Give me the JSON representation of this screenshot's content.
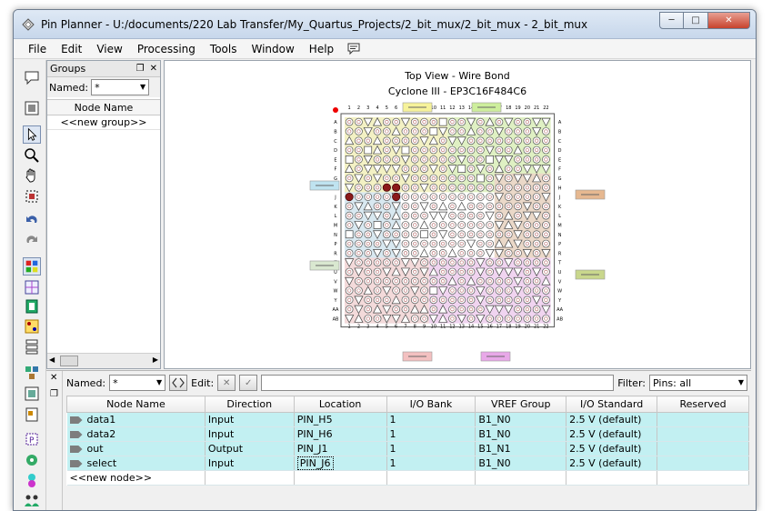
{
  "window": {
    "title": "Pin Planner - U:/documents/220 Lab Transfer/My_Quartus_Projects/2_bit_mux/2_bit_mux - 2_bit_mux",
    "minimize": "─",
    "maximize": "□",
    "close": "✕"
  },
  "menu": [
    "File",
    "Edit",
    "View",
    "Processing",
    "Tools",
    "Window",
    "Help"
  ],
  "groups": {
    "title": "Groups",
    "named_label": "Named:",
    "named_value": "*",
    "column": "Node Name",
    "rows": [
      "<<new group>>"
    ]
  },
  "chip": {
    "title": "Top View - Wire Bond",
    "subtitle": "Cyclone III - EP3C16F484C6",
    "columns": [
      "1",
      "2",
      "3",
      "4",
      "5",
      "6",
      "7",
      "8",
      "9",
      "10",
      "11",
      "12",
      "13",
      "14",
      "15",
      "16",
      "17",
      "18",
      "19",
      "20",
      "21",
      "22"
    ],
    "rows": [
      "A",
      "B",
      "C",
      "D",
      "E",
      "F",
      "G",
      "H",
      "J",
      "K",
      "L",
      "M",
      "N",
      "P",
      "R",
      "T",
      "U",
      "V",
      "W",
      "Y",
      "AA",
      "AB"
    ]
  },
  "bottom": {
    "named_label": "Named:",
    "named_value": "*",
    "edit_label": "Edit:",
    "filter_label": "Filter:",
    "filter_value": "Pins: all",
    "columns": [
      "Node Name",
      "Direction",
      "Location",
      "I/O Bank",
      "VREF Group",
      "I/O Standard",
      "Reserved"
    ],
    "rows": [
      {
        "name": "data1",
        "direction": "Input",
        "location": "PIN_H5",
        "bank": "1",
        "vref": "B1_N0",
        "standard": "2.5 V (default)",
        "reserved": ""
      },
      {
        "name": "data2",
        "direction": "Input",
        "location": "PIN_H6",
        "bank": "1",
        "vref": "B1_N0",
        "standard": "2.5 V (default)",
        "reserved": ""
      },
      {
        "name": "out",
        "direction": "Output",
        "location": "PIN_J1",
        "bank": "1",
        "vref": "B1_N1",
        "standard": "2.5 V (default)",
        "reserved": ""
      },
      {
        "name": "select",
        "direction": "Input",
        "location": "PIN_J6",
        "bank": "1",
        "vref": "B1_N0",
        "standard": "2.5 V (default)",
        "reserved": ""
      }
    ],
    "new_node": "<<new node>>"
  }
}
